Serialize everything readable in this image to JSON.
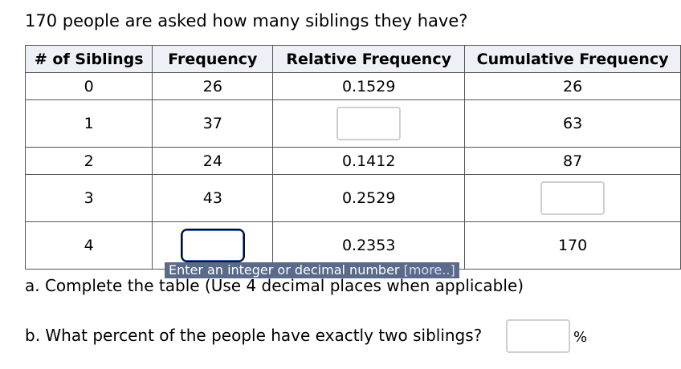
{
  "question": "170 people are asked how many siblings they have?",
  "table": {
    "headers": [
      "# of Siblings",
      "Frequency",
      "Relative Frequency",
      "Cumulative Frequency"
    ],
    "rows": [
      {
        "siblings": "0",
        "frequency": "26",
        "relative": "0.1529",
        "cumulative": "26"
      },
      {
        "siblings": "1",
        "frequency": "37",
        "relative": "",
        "cumulative": "63"
      },
      {
        "siblings": "2",
        "frequency": "24",
        "relative": "0.1412",
        "cumulative": "87"
      },
      {
        "siblings": "3",
        "frequency": "43",
        "relative": "0.2529",
        "cumulative": ""
      },
      {
        "siblings": "4",
        "frequency": "",
        "relative": "0.2353",
        "cumulative": "170"
      }
    ]
  },
  "tooltip": {
    "text": "Enter an integer or decimal number ",
    "more": "[more..]"
  },
  "part_a": "a. Complete the table (Use 4 decimal places when applicable)",
  "part_b": "b. What percent of the people have exactly two siblings?",
  "percent_sign": "%"
}
